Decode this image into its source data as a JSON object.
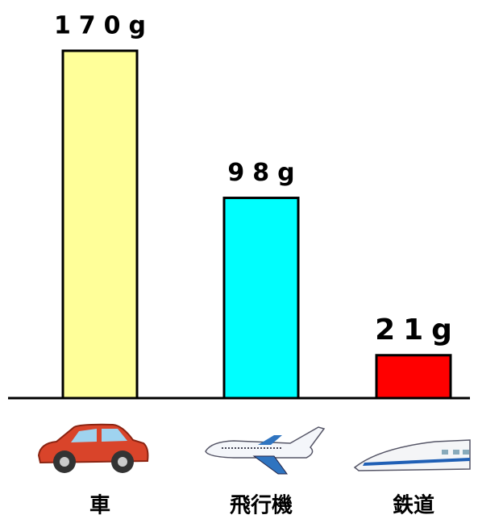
{
  "chart_data": {
    "type": "bar",
    "categories": [
      "車",
      "飛行機",
      "鉄道"
    ],
    "values": [
      170,
      98,
      21
    ],
    "value_labels": [
      "170g",
      "98g",
      "21g"
    ],
    "colors": [
      "#ffff99",
      "#00ffff",
      "#ff0000"
    ],
    "ylim": [
      0,
      170
    ]
  }
}
